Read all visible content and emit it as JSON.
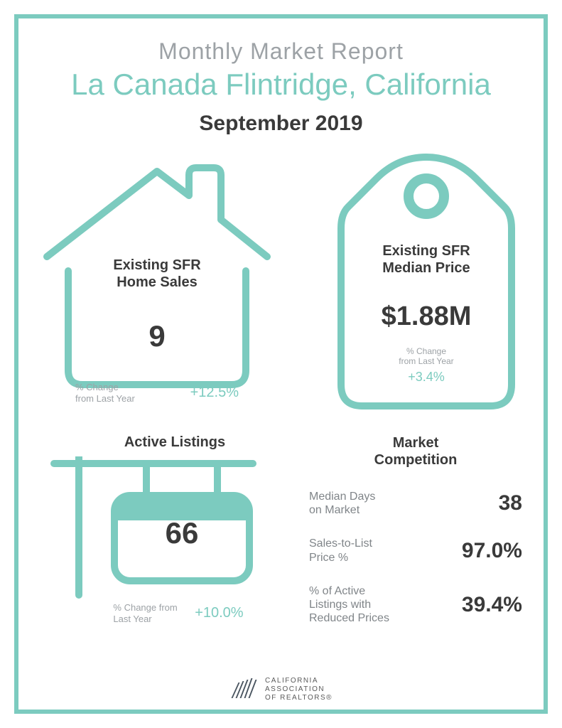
{
  "colors": {
    "accent": "#7ccbbf",
    "gray_text": "#9da2a6",
    "dark_text": "#3a3a3a",
    "metric_label": "#808589",
    "background": "#ffffff",
    "border_width": 6
  },
  "header": {
    "report_title": "Monthly Market Report",
    "location": "La Canada Flintridge, California",
    "date": "September 2019"
  },
  "home_sales": {
    "label": "Existing SFR\nHome Sales",
    "value": "9",
    "change_label": "% Change\nfrom Last Year",
    "change_value": "+12.5%"
  },
  "median_price": {
    "label": "Existing SFR\nMedian Price",
    "value": "$1.88M",
    "change_label": "% Change\nfrom Last Year",
    "change_value": "+3.4%"
  },
  "active_listings": {
    "title": "Active Listings",
    "value": "66",
    "change_label": "% Change from\nLast Year",
    "change_value": "+10.0%"
  },
  "market_competition": {
    "title": "Market\nCompetition",
    "metrics": [
      {
        "label": "Median Days\non Market",
        "value": "38"
      },
      {
        "label": "Sales-to-List\nPrice %",
        "value": "97.0%"
      },
      {
        "label": "% of Active\nListings with\nReduced Prices",
        "value": "39.4%"
      }
    ]
  },
  "footer": {
    "org": "CALIFORNIA\nASSOCIATION\nOF REALTORS®"
  }
}
